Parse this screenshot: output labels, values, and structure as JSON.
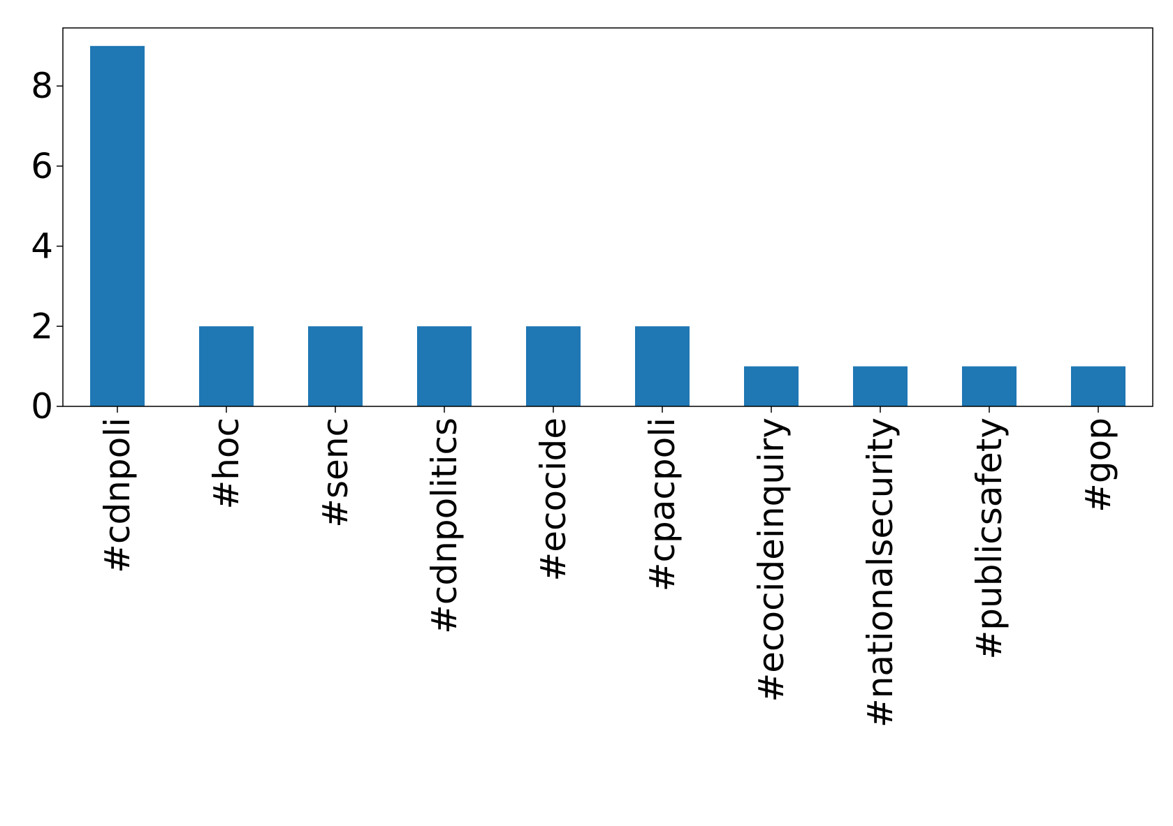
{
  "chart_data": {
    "type": "bar",
    "title": "",
    "xlabel": "",
    "ylabel": "",
    "categories": [
      "#cdnpoli",
      "#hoc",
      "#senc",
      "#cdnpolitics",
      "#ecocide",
      "#cpacpoli",
      "#ecocideinquiry",
      "#nationalsecurity",
      "#publicsafety",
      "#gop"
    ],
    "values": [
      9,
      2,
      2,
      2,
      2,
      2,
      1,
      1,
      1,
      1
    ],
    "ylim": [
      0,
      9.45
    ],
    "yticks": [
      0,
      2,
      4,
      6,
      8
    ],
    "ytick_labels": [
      "0",
      "2",
      "4",
      "6",
      "8"
    ],
    "bar_color": "#1f77b4",
    "grid": false,
    "legend": "none"
  }
}
